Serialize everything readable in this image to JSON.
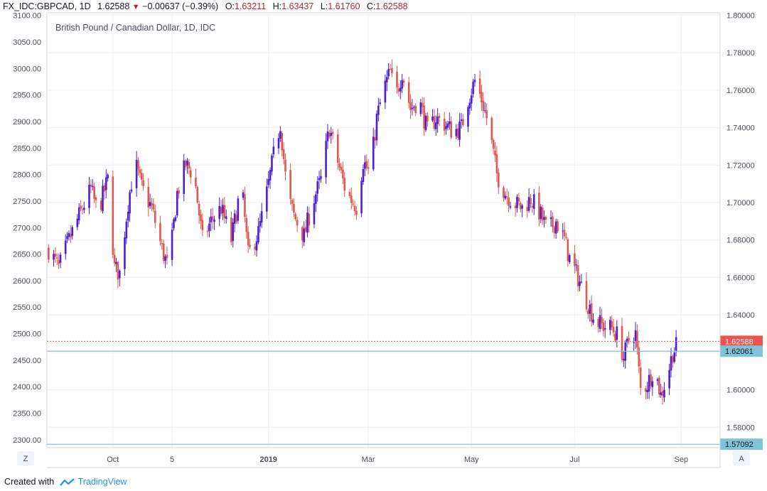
{
  "header": {
    "symbol": "FX_IDC:GBPCAD, 1D",
    "last": "1.62588",
    "change": "−0.00637 (−0.39%)",
    "open_label": "O:",
    "open": "1.63211",
    "high_label": "H:",
    "high": "1.63437",
    "low_label": "L:",
    "low": "1.61760",
    "close_label": "C:",
    "close": "1.62588"
  },
  "footer": {
    "created_with": "Created with",
    "brand": "TradingView"
  },
  "buttons": {
    "left": "Z",
    "right": "A"
  },
  "colors": {
    "up": "#4a1fd6",
    "down": "#e0584f",
    "grid": "#eef0f3",
    "hline": "#7ec4d6",
    "price_label": "#ef5350",
    "support_label": "#7ec4d6"
  },
  "chart_data": {
    "type": "candlestick",
    "title": "British Pound / Canadian Dollar, 1D, IDC",
    "left_axis": {
      "ticks": [
        "3100.00",
        "3050.00",
        "3000.00",
        "2950.00",
        "2900.00",
        "2850.00",
        "2800.00",
        "2750.00",
        "2700.00",
        "2650.00",
        "2600.00",
        "2550.00",
        "2500.00",
        "2450.00",
        "2400.00",
        "2350.00",
        "2300.00"
      ],
      "range": [
        2285,
        3105
      ]
    },
    "right_axis": {
      "ticks": [
        "1.80000",
        "1.78000",
        "1.76000",
        "1.74000",
        "1.72000",
        "1.70000",
        "1.68000",
        "1.66000",
        "1.64000",
        "1.62000",
        "1.60000",
        "1.58000"
      ],
      "range": [
        1.5691,
        1.8013
      ]
    },
    "x_labels": [
      {
        "label": "Oct",
        "date": "2018-10-01"
      },
      {
        "label": "5",
        "date": "2018-11-05"
      },
      {
        "label": "2019",
        "date": "2019-01-01"
      },
      {
        "label": "Mar",
        "date": "2019-03-01"
      },
      {
        "label": "May",
        "date": "2019-05-01"
      },
      {
        "label": "Jul",
        "date": "2019-07-01"
      },
      {
        "label": "Sep",
        "date": "2019-09-02"
      }
    ],
    "x_range": [
      "2018-08-23",
      "2019-09-25"
    ],
    "price_line": {
      "value": 1.62588,
      "label": "1.62588"
    },
    "horizontal_lines": [
      {
        "value": 1.62061,
        "label": "1.62061"
      },
      {
        "value": 1.57092,
        "label": "1.57092"
      }
    ],
    "close_path": [
      [
        "2018-08-24",
        1.675
      ],
      [
        "2018-08-30",
        1.665
      ],
      [
        "2018-09-05",
        1.68
      ],
      [
        "2018-09-12",
        1.695
      ],
      [
        "2018-09-18",
        1.707
      ],
      [
        "2018-09-22",
        1.695
      ],
      [
        "2018-09-28",
        1.712
      ],
      [
        "2018-10-02",
        1.665
      ],
      [
        "2018-10-05",
        1.662
      ],
      [
        "2018-10-10",
        1.7
      ],
      [
        "2018-10-14",
        1.722
      ],
      [
        "2018-10-18",
        1.708
      ],
      [
        "2018-10-24",
        1.697
      ],
      [
        "2018-10-30",
        1.675
      ],
      [
        "2018-11-03",
        1.664
      ],
      [
        "2018-11-08",
        1.705
      ],
      [
        "2018-11-13",
        1.72
      ],
      [
        "2018-11-18",
        1.715
      ],
      [
        "2018-11-23",
        1.68
      ],
      [
        "2018-11-28",
        1.69
      ],
      [
        "2018-12-04",
        1.697
      ],
      [
        "2018-12-10",
        1.68
      ],
      [
        "2018-12-16",
        1.71
      ],
      [
        "2018-12-20",
        1.672
      ],
      [
        "2018-12-26",
        1.684
      ],
      [
        "2018-12-30",
        1.7
      ],
      [
        "2019-01-04",
        1.725
      ],
      [
        "2019-01-08",
        1.742
      ],
      [
        "2019-01-12",
        1.705
      ],
      [
        "2019-01-16",
        1.693
      ],
      [
        "2019-01-22",
        1.682
      ],
      [
        "2019-01-27",
        1.7
      ],
      [
        "2019-02-01",
        1.712
      ],
      [
        "2019-02-06",
        1.74
      ],
      [
        "2019-02-10",
        1.725
      ],
      [
        "2019-02-16",
        1.705
      ],
      [
        "2019-02-22",
        1.698
      ],
      [
        "2019-02-26",
        1.722
      ],
      [
        "2019-03-02",
        1.715
      ],
      [
        "2019-03-06",
        1.745
      ],
      [
        "2019-03-10",
        1.76
      ],
      [
        "2019-03-14",
        1.77
      ],
      [
        "2019-03-17",
        1.755
      ],
      [
        "2019-03-21",
        1.77
      ],
      [
        "2019-03-26",
        1.75
      ],
      [
        "2019-03-31",
        1.755
      ],
      [
        "2019-04-05",
        1.738
      ],
      [
        "2019-04-10",
        1.745
      ],
      [
        "2019-04-15",
        1.742
      ],
      [
        "2019-04-20",
        1.738
      ],
      [
        "2019-04-25",
        1.74
      ],
      [
        "2019-04-29",
        1.755
      ],
      [
        "2019-05-03",
        1.765
      ],
      [
        "2019-05-07",
        1.755
      ],
      [
        "2019-05-11",
        1.742
      ],
      [
        "2019-05-16",
        1.715
      ],
      [
        "2019-05-21",
        1.705
      ],
      [
        "2019-05-26",
        1.7
      ],
      [
        "2019-05-31",
        1.697
      ],
      [
        "2019-06-05",
        1.702
      ],
      [
        "2019-06-10",
        1.695
      ],
      [
        "2019-06-15",
        1.685
      ],
      [
        "2019-06-20",
        1.69
      ],
      [
        "2019-06-25",
        1.68
      ],
      [
        "2019-06-28",
        1.67
      ],
      [
        "2019-07-03",
        1.66
      ],
      [
        "2019-07-08",
        1.648
      ],
      [
        "2019-07-13",
        1.637
      ],
      [
        "2019-07-18",
        1.634
      ],
      [
        "2019-07-23",
        1.633
      ],
      [
        "2019-07-27",
        1.628
      ],
      [
        "2019-07-30",
        1.617
      ],
      [
        "2019-08-03",
        1.63
      ],
      [
        "2019-08-06",
        1.63
      ],
      [
        "2019-08-09",
        1.6
      ],
      [
        "2019-08-13",
        1.603
      ],
      [
        "2019-08-17",
        1.612
      ],
      [
        "2019-08-21",
        1.597
      ],
      [
        "2019-08-25",
        1.608
      ],
      [
        "2019-08-28",
        1.62
      ],
      [
        "2019-09-01",
        1.626
      ]
    ]
  }
}
